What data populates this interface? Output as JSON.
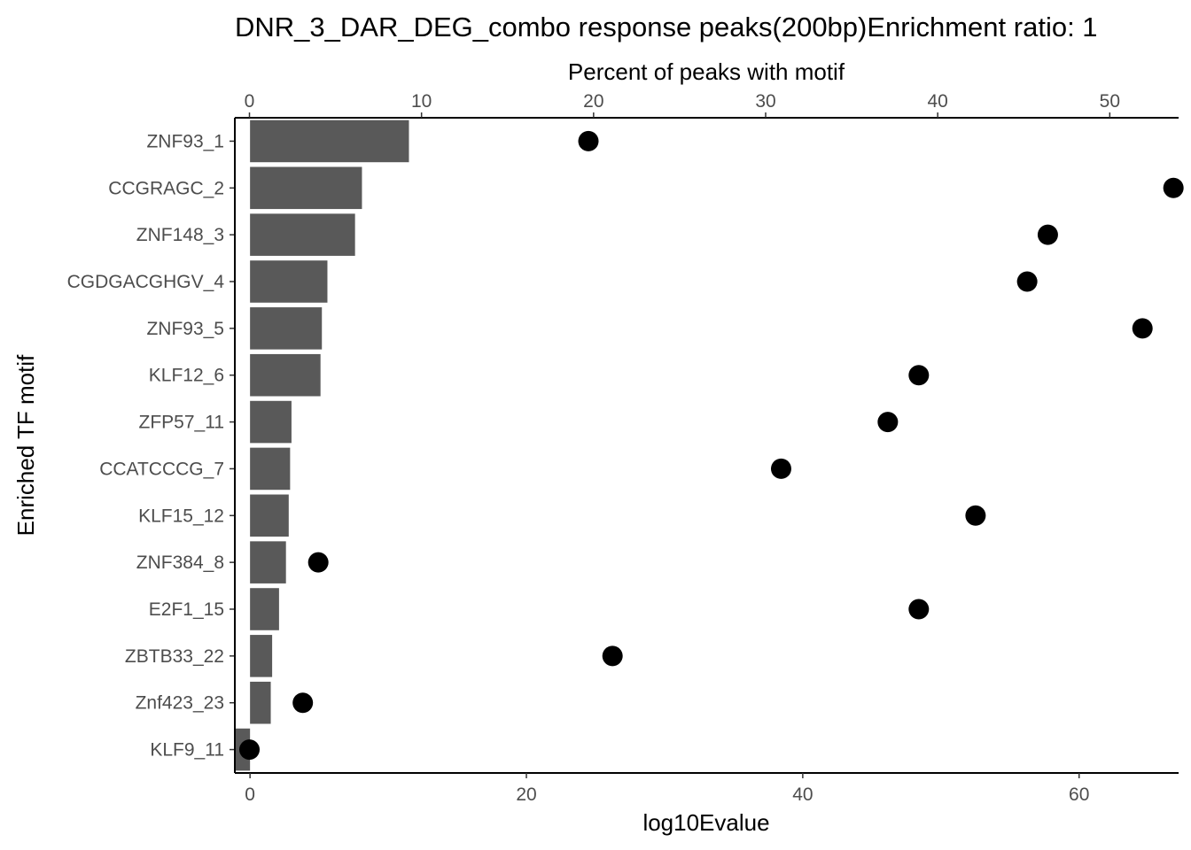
{
  "chart_data": {
    "type": "bar",
    "title": "DNR_3_DAR_DEG_combo response peaks(200bp)Enrichment ratio: 1",
    "ylabel": "Enriched TF motif",
    "x_bottom_label": "log10Evalue",
    "x_top_label": "Percent of peaks with motif",
    "bottom_ticks": [
      0,
      20,
      40,
      60
    ],
    "top_ticks": [
      0,
      10,
      20,
      30,
      40,
      50
    ],
    "bottom_xlim": [
      -1.1,
      67.2
    ],
    "top_xlim": [
      -0.85,
      54.0
    ],
    "categories": [
      "ZNF93_1",
      "CCGRAGC_2",
      "ZNF148_3",
      "CGDGACGHGV_4",
      "ZNF93_5",
      "KLF12_6",
      "ZFP57_11",
      "CCATCCCG_7",
      "KLF15_12",
      "ZNF384_8",
      "E2F1_15",
      "ZBTB33_22",
      "Znf423_23",
      "KLF9_11"
    ],
    "series": [
      {
        "axis": "bottom",
        "mark": "bar",
        "color": "#595959",
        "values": [
          11.5,
          8.1,
          7.6,
          5.6,
          5.2,
          5.1,
          3.0,
          2.9,
          2.8,
          2.6,
          2.1,
          1.6,
          1.5,
          -1.1
        ]
      },
      {
        "axis": "top",
        "mark": "point",
        "color": "#000000",
        "values": [
          19.7,
          53.7,
          46.4,
          45.2,
          51.9,
          38.9,
          37.1,
          30.9,
          42.2,
          4.0,
          38.9,
          21.1,
          3.1,
          0.0
        ]
      }
    ]
  }
}
